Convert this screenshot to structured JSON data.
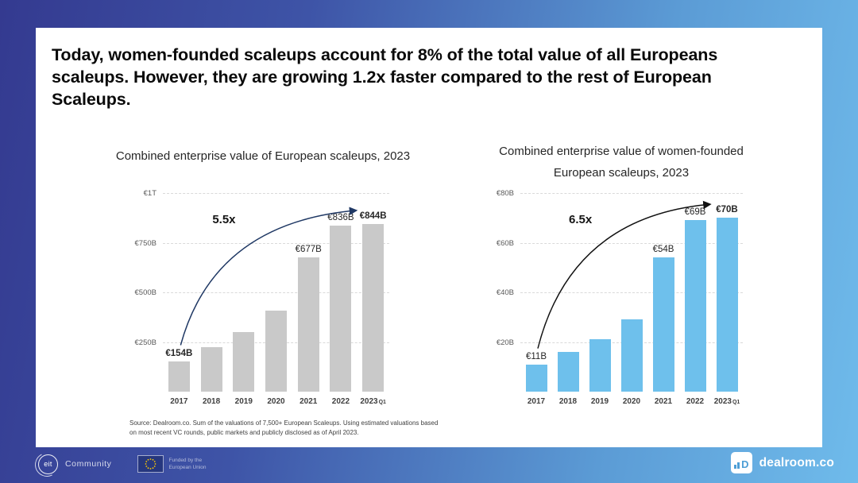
{
  "slide": {
    "headline": "Today, women-founded scaleups account for 8% of the total value of all Europeans\nscaleups. However, they are growing 1.2x faster compared to the rest of European\nScaleups.",
    "source": "Source: Dealroom.co. Sum of the valuations of 7,500+ European Scaleups. Using estimated valuations based\non most recent VC rounds, public markets and publicly disclosed as of April 2023."
  },
  "footer": {
    "eit_circle_label": "eit",
    "eit_community_label": "Community",
    "eu_funding_label": "Funded by the\nEuropean Union",
    "dealroom_label": "dealroom.co",
    "dealroom_icon_letter": "D"
  },
  "colors": {
    "background_gradient_start": "#343A90",
    "background_gradient_end": "#6FBBEB",
    "card": "#FFFFFF",
    "gray_bar": "#C9C9C9",
    "blue_bar": "#6EC0EC",
    "gridline": "#D9D9D9",
    "axis_label": "#595959",
    "eu_flag_blue": "#26377E",
    "eu_star_yellow": "#FFCC00",
    "dealroom_blue": "#4E9FD6"
  },
  "chart_data": [
    {
      "type": "bar",
      "title": "Combined enterprise  value of European scaleups, 2023",
      "categories": [
        "2017",
        "2018",
        "2019",
        "2020",
        "2021",
        "2022",
        "2023"
      ],
      "category_suffixes": [
        "",
        "",
        "",
        "",
        "",
        "",
        "Q1"
      ],
      "values": [
        154,
        225,
        300,
        410,
        677,
        836,
        844
      ],
      "unit": "EUR billions",
      "bar_labels": [
        "€154B",
        "",
        "",
        "",
        "€677B",
        "€836B",
        "€844B"
      ],
      "bar_label_bold": [
        true,
        false,
        false,
        false,
        false,
        false,
        true
      ],
      "annotation": "5.5x",
      "y_ticks": [
        {
          "label": "€1T",
          "value": 1000
        },
        {
          "label": "€750B",
          "value": 750
        },
        {
          "label": "€500B",
          "value": 500
        },
        {
          "label": "€250B",
          "value": 250
        }
      ],
      "ylim": [
        0,
        1000
      ],
      "grid": true,
      "legend": null,
      "bar_color": "#C9C9C9",
      "arrow_color": "#1F3864"
    },
    {
      "type": "bar",
      "title": "Combined enterprise  value of women-founded\nEuropean scaleups, 2023",
      "categories": [
        "2017",
        "2018",
        "2019",
        "2020",
        "2021",
        "2022",
        "2023"
      ],
      "category_suffixes": [
        "",
        "",
        "",
        "",
        "",
        "",
        "Q1"
      ],
      "values": [
        11,
        16,
        21,
        29,
        54,
        69,
        70
      ],
      "unit": "EUR billions",
      "bar_labels": [
        "€11B",
        "",
        "",
        "",
        "€54B",
        "€69B",
        "€70B"
      ],
      "bar_label_bold": [
        false,
        false,
        false,
        false,
        false,
        false,
        true
      ],
      "annotation": "6.5x",
      "y_ticks": [
        {
          "label": "€80B",
          "value": 80
        },
        {
          "label": "€60B",
          "value": 60
        },
        {
          "label": "€40B",
          "value": 40
        },
        {
          "label": "€20B",
          "value": 20
        }
      ],
      "ylim": [
        0,
        80
      ],
      "grid": true,
      "legend": null,
      "bar_color": "#6EC0EC",
      "arrow_color": "#111111"
    }
  ]
}
